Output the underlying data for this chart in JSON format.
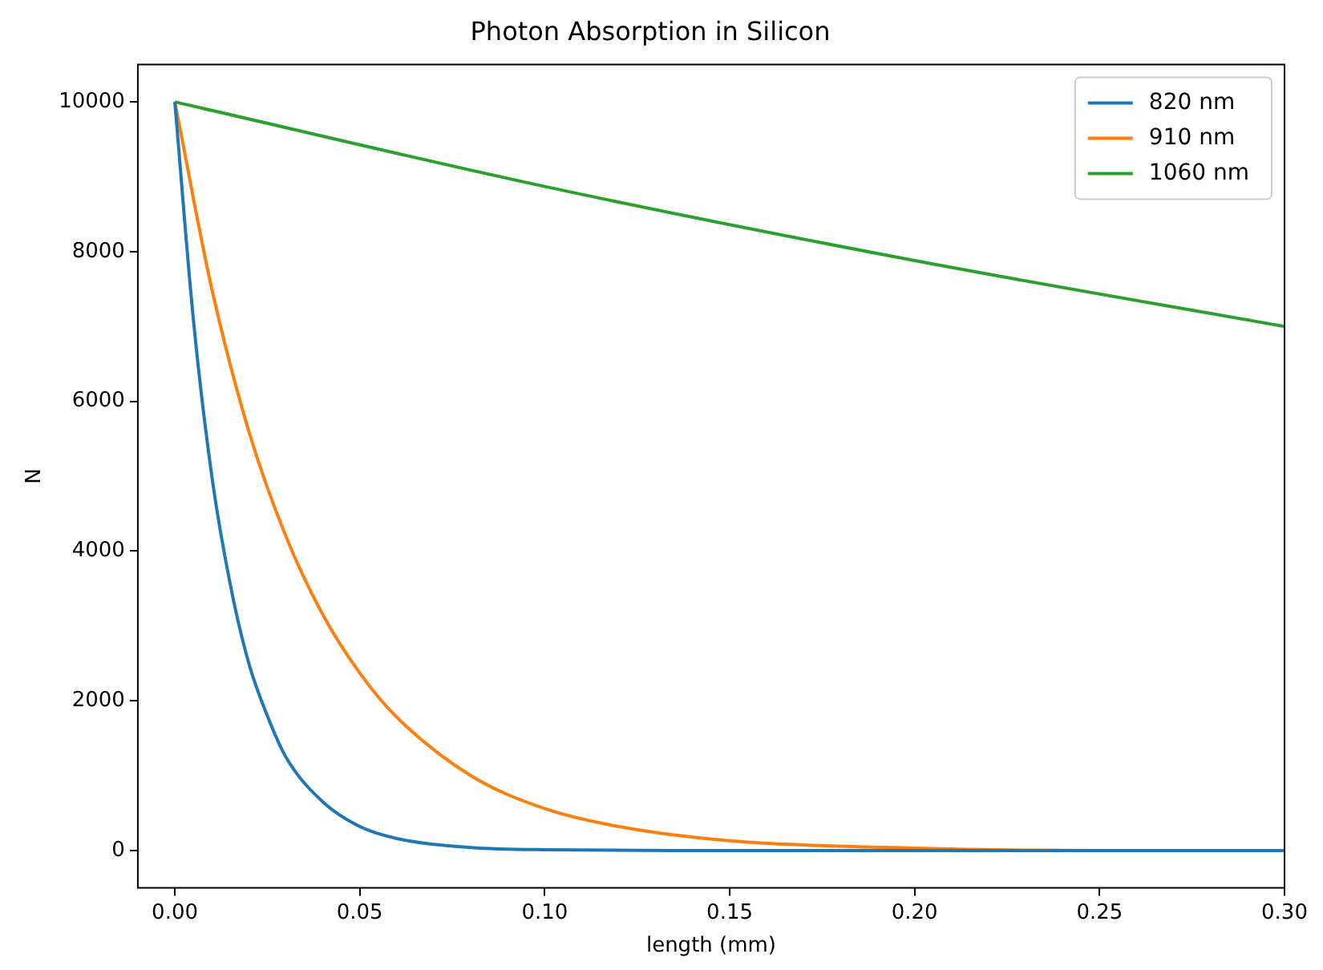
{
  "chart_data": {
    "type": "line",
    "title": "Photon Absorption in Silicon",
    "xlabel": "length (mm)",
    "ylabel": "N",
    "xlim": [
      -0.01,
      0.3
    ],
    "xticks": [
      {
        "value": 0,
        "label": "0.00"
      },
      {
        "value": 0.05,
        "label": "0.05"
      },
      {
        "value": 0.1,
        "label": "0.10"
      },
      {
        "value": 0.15,
        "label": "0.15"
      },
      {
        "value": 0.2,
        "label": "0.20"
      },
      {
        "value": 0.25,
        "label": "0.25"
      },
      {
        "value": 0.3,
        "label": "0.30"
      }
    ],
    "ylim": [
      -500,
      10500
    ],
    "yticks": [
      0,
      2000,
      4000,
      6000,
      8000,
      10000
    ],
    "grid": false,
    "legend": "top right",
    "marker": "none",
    "line_style": "solid",
    "series": [
      {
        "name": "820 nm",
        "color": "#1f77b4",
        "x": [
          0,
          0.005,
          0.01,
          0.015,
          0.02,
          0.025,
          0.03,
          0.04,
          0.05,
          0.06,
          0.08,
          0.1,
          0.15,
          0.2,
          0.3
        ],
        "values": [
          10000,
          7100,
          5000,
          3550,
          2500,
          1800,
          1250,
          650,
          320,
          160,
          40,
          10,
          0,
          0,
          0
        ]
      },
      {
        "name": "910 nm",
        "color": "#ff7f0e",
        "x": [
          0,
          0.01,
          0.02,
          0.03,
          0.04,
          0.05,
          0.06,
          0.08,
          0.1,
          0.12,
          0.15,
          0.2,
          0.25,
          0.3
        ],
        "values": [
          10000,
          7500,
          5600,
          4200,
          3150,
          2370,
          1780,
          1000,
          560,
          320,
          130,
          30,
          0,
          0
        ]
      },
      {
        "name": "1060 nm",
        "color": "#2ca02c",
        "x": [
          0,
          0.1,
          0.2,
          0.3
        ],
        "values": [
          10000,
          8870,
          7880,
          7000
        ]
      }
    ]
  }
}
